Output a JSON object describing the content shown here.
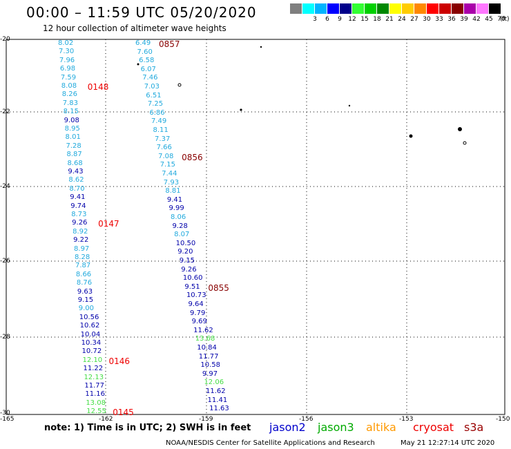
{
  "header": {
    "title": "00:00 – 11:59 UTC 05/20/2020",
    "subtitle": "12 hour collection of altimeter wave heights"
  },
  "scale": {
    "unit": "(ft)",
    "items": [
      {
        "label": "",
        "color": "#7f7f7f"
      },
      {
        "label": "3",
        "color": "#00ffff"
      },
      {
        "label": "6",
        "color": "#00b4ff"
      },
      {
        "label": "9",
        "color": "#0000ff"
      },
      {
        "label": "12",
        "color": "#00008b"
      },
      {
        "label": "15",
        "color": "#33ff33"
      },
      {
        "label": "18",
        "color": "#00d000"
      },
      {
        "label": "21",
        "color": "#008800"
      },
      {
        "label": "24",
        "color": "#ffff00"
      },
      {
        "label": "27",
        "color": "#ffcc00"
      },
      {
        "label": "30",
        "color": "#ff8800"
      },
      {
        "label": "33",
        "color": "#ff0000"
      },
      {
        "label": "36",
        "color": "#cc0000"
      },
      {
        "label": "39",
        "color": "#880000"
      },
      {
        "label": "42",
        "color": "#aa00aa"
      },
      {
        "label": "45",
        "color": "#ff77ff"
      },
      {
        "label": "70",
        "color": "#000000"
      }
    ]
  },
  "map": {
    "lon_ticks": [
      "-165",
      "-162",
      "-159",
      "-156",
      "-153",
      "-150"
    ],
    "lat_ticks": [
      "-20",
      "-22",
      "-24",
      "-26",
      "-28",
      "-30"
    ],
    "colors": {
      "light": "#22aadd",
      "dark": "#0000aa",
      "green": "#44dd44",
      "time": "#ee0000",
      "time_dark": "#880000"
    },
    "passes": [
      {
        "values": [
          {
            "v": "8.02",
            "c": "light"
          },
          {
            "v": "7.30",
            "c": "light"
          },
          {
            "v": "7.96",
            "c": "light"
          },
          {
            "v": "6.98",
            "c": "light"
          },
          {
            "v": "7.59",
            "c": "light"
          },
          {
            "v": "8.08",
            "c": "light"
          },
          {
            "v": "8.26",
            "c": "light"
          },
          {
            "v": "7.83",
            "c": "light"
          },
          {
            "v": "8.15",
            "c": "light"
          },
          {
            "v": "9.08",
            "c": "dark"
          },
          {
            "v": "8.95",
            "c": "light"
          },
          {
            "v": "8.01",
            "c": "light"
          },
          {
            "v": "7.28",
            "c": "light"
          },
          {
            "v": "8.87",
            "c": "light"
          },
          {
            "v": "8.68",
            "c": "light"
          },
          {
            "v": "9.43",
            "c": "dark"
          },
          {
            "v": "8.62",
            "c": "light"
          },
          {
            "v": "8.70",
            "c": "light"
          },
          {
            "v": "9.41",
            "c": "dark"
          },
          {
            "v": "9.74",
            "c": "dark"
          },
          {
            "v": "8.73",
            "c": "light"
          },
          {
            "v": "9.26",
            "c": "dark"
          },
          {
            "v": "8.92",
            "c": "light"
          },
          {
            "v": "9.22",
            "c": "dark"
          },
          {
            "v": "8.97",
            "c": "light"
          },
          {
            "v": "8.28",
            "c": "light"
          },
          {
            "v": "7.87",
            "c": "light"
          },
          {
            "v": "8.66",
            "c": "light"
          },
          {
            "v": "8.76",
            "c": "light"
          },
          {
            "v": "9.63",
            "c": "dark"
          },
          {
            "v": "9.15",
            "c": "dark"
          },
          {
            "v": "9.00",
            "c": "light"
          },
          {
            "v": "10.56",
            "c": "dark"
          },
          {
            "v": "10.62",
            "c": "dark"
          },
          {
            "v": "10.04",
            "c": "dark"
          },
          {
            "v": "10.34",
            "c": "dark"
          },
          {
            "v": "10.72",
            "c": "dark"
          },
          {
            "v": "12.10",
            "c": "green"
          },
          {
            "v": "11.22",
            "c": "dark"
          },
          {
            "v": "12.13",
            "c": "green"
          },
          {
            "v": "11.77",
            "c": "dark"
          },
          {
            "v": "11.16",
            "c": "dark"
          },
          {
            "v": "13.08",
            "c": "green"
          },
          {
            "v": "12.55",
            "c": "green"
          }
        ],
        "times": [
          {
            "t": "0148",
            "after": 5,
            "c": "time"
          },
          {
            "t": "0147",
            "after": 21,
            "c": "time"
          },
          {
            "t": "0146",
            "after": 37,
            "c": "time"
          },
          {
            "t": "0145",
            "after": 43,
            "c": "time"
          }
        ]
      },
      {
        "values": [
          {
            "v": "6.49",
            "c": "light"
          },
          {
            "v": "7.60",
            "c": "light"
          },
          {
            "v": "6.58",
            "c": "light"
          },
          {
            "v": "6.07",
            "c": "light"
          },
          {
            "v": "7.46",
            "c": "light"
          },
          {
            "v": "7.03",
            "c": "light"
          },
          {
            "v": "6.51",
            "c": "light"
          },
          {
            "v": "7.25",
            "c": "light"
          },
          {
            "v": "6.86",
            "c": "light"
          },
          {
            "v": "7.49",
            "c": "light"
          },
          {
            "v": "8.11",
            "c": "light"
          },
          {
            "v": "7.37",
            "c": "light"
          },
          {
            "v": "7.66",
            "c": "light"
          },
          {
            "v": "7.08",
            "c": "light"
          },
          {
            "v": "7.15",
            "c": "light"
          },
          {
            "v": "7.44",
            "c": "light"
          },
          {
            "v": "7.93",
            "c": "light"
          },
          {
            "v": "8.81",
            "c": "light"
          },
          {
            "v": "9.41",
            "c": "dark"
          },
          {
            "v": "9.99",
            "c": "dark"
          },
          {
            "v": "8.06",
            "c": "light"
          },
          {
            "v": "9.28",
            "c": "dark"
          },
          {
            "v": "8.07",
            "c": "light"
          },
          {
            "v": "10.50",
            "c": "dark"
          },
          {
            "v": "9.20",
            "c": "dark"
          },
          {
            "v": "9.15",
            "c": "dark"
          },
          {
            "v": "9.26",
            "c": "dark"
          },
          {
            "v": "10.60",
            "c": "dark"
          },
          {
            "v": "9.51",
            "c": "dark"
          },
          {
            "v": "10.73",
            "c": "dark"
          },
          {
            "v": "9.64",
            "c": "dark"
          },
          {
            "v": "9.79",
            "c": "dark"
          },
          {
            "v": "9.69",
            "c": "dark"
          },
          {
            "v": "11.62",
            "c": "dark"
          },
          {
            "v": "13.68",
            "c": "green"
          },
          {
            "v": "10.84",
            "c": "dark"
          },
          {
            "v": "11.77",
            "c": "dark"
          },
          {
            "v": "10.58",
            "c": "dark"
          },
          {
            "v": "9.97",
            "c": "dark"
          },
          {
            "v": "12.06",
            "c": "green"
          },
          {
            "v": "11.62",
            "c": "dark"
          },
          {
            "v": "11.41",
            "c": "dark"
          },
          {
            "v": "11.63",
            "c": "dark"
          }
        ],
        "times": [
          {
            "t": "0857",
            "after": 0,
            "c": "time_dark"
          },
          {
            "t": "0856",
            "after": 13,
            "c": "time_dark"
          },
          {
            "t": "0855",
            "after": 28,
            "c": "time_dark"
          }
        ]
      }
    ]
  },
  "footer": {
    "note": "note: 1) Time is in UTC; 2) SWH is in feet",
    "satellites": [
      {
        "name": "jason2",
        "color": "#0000cc"
      },
      {
        "name": "jason3",
        "color": "#00aa00"
      },
      {
        "name": "altika",
        "color": "#ff9900"
      },
      {
        "name": "cryosat",
        "color": "#ee0000"
      },
      {
        "name": "s3a",
        "color": "#990000"
      }
    ],
    "credit": "NOAA/NESDIS Center for Satellite Applications and Research",
    "timestamp": "May 21 12:27:14 UTC 2020"
  }
}
